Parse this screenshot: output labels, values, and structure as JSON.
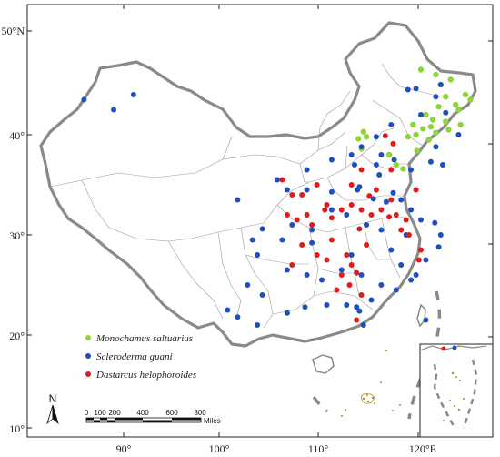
{
  "axes": {
    "lat_labels": [
      "50°N",
      "40°",
      "30°",
      "20°",
      "10°"
    ],
    "lon_labels": [
      "90°",
      "100°",
      "110°",
      "120°E"
    ]
  },
  "legend": {
    "items": [
      {
        "label": "Monochamus saltuarius",
        "color": "#8fd43a"
      },
      {
        "label": "Scleroderma guani",
        "color": "#1f4fbf"
      },
      {
        "label": "Dastarcus helophoroides",
        "color": "#e01b1b"
      }
    ]
  },
  "scale_bar": {
    "ticks": [
      "0",
      "100",
      "200",
      "400",
      "600",
      "800"
    ],
    "unit": "Miles"
  },
  "north_arrow": {
    "letter": "N"
  },
  "colors": {
    "border": "#8a8a8a",
    "province_lines": "#9a9a9a",
    "green_points": "#8fd43a",
    "blue_points": "#1f4fbf",
    "red_points": "#e01b1b"
  },
  "chart_data": {
    "type": "scatter",
    "title": "",
    "xlabel": "",
    "ylabel": "",
    "xlim": [
      81,
      128
    ],
    "ylim": [
      9,
      51
    ],
    "series": [
      {
        "name": "Monochamus saltuarius",
        "color": "#8fd43a",
        "points": [
          [
            120.0,
            46.5
          ],
          [
            121.5,
            46.0
          ],
          [
            122.0,
            45.0
          ],
          [
            123.0,
            45.5
          ],
          [
            122.5,
            43.8
          ],
          [
            123.5,
            43.0
          ],
          [
            124.5,
            44.0
          ],
          [
            125.0,
            43.5
          ],
          [
            123.8,
            42.5
          ],
          [
            121.8,
            42.8
          ],
          [
            120.5,
            42.0
          ],
          [
            121.2,
            41.5
          ],
          [
            122.5,
            41.3
          ],
          [
            121.0,
            40.8
          ],
          [
            120.2,
            40.6
          ],
          [
            121.5,
            40.2
          ],
          [
            122.8,
            40.5
          ],
          [
            124.0,
            41.0
          ],
          [
            119.5,
            40.0
          ],
          [
            120.8,
            39.5
          ],
          [
            118.7,
            39.8
          ],
          [
            119.2,
            41.0
          ],
          [
            114.2,
            40.3
          ],
          [
            114.5,
            39.8
          ],
          [
            113.7,
            39.6
          ],
          [
            114.0,
            38.6
          ],
          [
            116.8,
            38.0
          ],
          [
            117.5,
            37.0
          ],
          [
            118.2,
            36.6
          ],
          [
            119.6,
            38.4
          ]
        ]
      },
      {
        "name": "Scleroderma guani",
        "color": "#1f4fbf",
        "points": [
          [
            86.0,
            43.5
          ],
          [
            89.0,
            42.5
          ],
          [
            91.0,
            44.0
          ],
          [
            118.7,
            44.5
          ],
          [
            119.5,
            44.6
          ],
          [
            121.5,
            43.8
          ],
          [
            122.5,
            42.2
          ],
          [
            120.0,
            42.0
          ],
          [
            117.0,
            41.0
          ],
          [
            115.5,
            39.8
          ],
          [
            114.0,
            38.8
          ],
          [
            113.0,
            38.0
          ],
          [
            113.3,
            37.0
          ],
          [
            111.0,
            37.5
          ],
          [
            108.5,
            36.5
          ],
          [
            105.5,
            35.5
          ],
          [
            106.5,
            34.5
          ],
          [
            108.5,
            34.5
          ],
          [
            111.0,
            34.3
          ],
          [
            113.6,
            34.5
          ],
          [
            115.2,
            33.6
          ],
          [
            116.5,
            33.3
          ],
          [
            117.2,
            34.2
          ],
          [
            118.0,
            33.5
          ],
          [
            119.0,
            32.5
          ],
          [
            120.0,
            31.5
          ],
          [
            121.4,
            31.2
          ],
          [
            122.0,
            30.0
          ],
          [
            121.8,
            28.8
          ],
          [
            120.5,
            27.5
          ],
          [
            119.5,
            26.0
          ],
          [
            118.0,
            27.0
          ],
          [
            117.0,
            28.5
          ],
          [
            118.5,
            30.0
          ],
          [
            116.0,
            30.5
          ],
          [
            114.5,
            31.0
          ],
          [
            112.5,
            32.0
          ],
          [
            111.0,
            32.5
          ],
          [
            109.0,
            30.5
          ],
          [
            107.0,
            31.0
          ],
          [
            104.0,
            30.6
          ],
          [
            103.0,
            29.5
          ],
          [
            101.5,
            33.5
          ],
          [
            106.0,
            29.5
          ],
          [
            106.5,
            26.5
          ],
          [
            108.5,
            26.0
          ],
          [
            110.0,
            25.5
          ],
          [
            112.0,
            26.5
          ],
          [
            113.0,
            28.0
          ],
          [
            114.0,
            26.0
          ],
          [
            116.0,
            25.0
          ],
          [
            117.5,
            24.5
          ],
          [
            119.0,
            25.5
          ],
          [
            115.0,
            23.5
          ],
          [
            113.5,
            22.8
          ],
          [
            112.5,
            23.0
          ],
          [
            110.5,
            23.0
          ],
          [
            108.3,
            22.8
          ],
          [
            106.5,
            22.2
          ],
          [
            104.0,
            24.0
          ],
          [
            102.5,
            25.0
          ],
          [
            100.5,
            22.5
          ],
          [
            101.5,
            21.8
          ],
          [
            103.5,
            21.0
          ],
          [
            114.2,
            21.0
          ],
          [
            113.8,
            22.4
          ],
          [
            103.5,
            28.0
          ],
          [
            109.0,
            29.2
          ],
          [
            113.8,
            34.8
          ],
          [
            115.8,
            36.0
          ],
          [
            119.0,
            36.5
          ],
          [
            121.0,
            37.3
          ],
          [
            122.2,
            37.0
          ],
          [
            117.3,
            37.5
          ],
          [
            116.0,
            38.0
          ],
          [
            115.5,
            37.0
          ],
          [
            121.5,
            38.8
          ],
          [
            123.8,
            40.0
          ],
          [
            122.0,
            45.0
          ],
          [
            120.5,
            21.5
          ]
        ]
      },
      {
        "name": "Dastarcus helophoroides",
        "color": "#e01b1b",
        "points": [
          [
            116.4,
            39.9
          ],
          [
            117.2,
            39.1
          ],
          [
            114.0,
            36.5
          ],
          [
            113.0,
            35.0
          ],
          [
            106.0,
            35.5
          ],
          [
            107.0,
            34.0
          ],
          [
            108.0,
            34.0
          ],
          [
            109.5,
            35.0
          ],
          [
            110.5,
            33.0
          ],
          [
            106.5,
            32.0
          ],
          [
            107.5,
            31.5
          ],
          [
            108.5,
            32.0
          ],
          [
            109.0,
            31.0
          ],
          [
            110.3,
            32.5
          ],
          [
            111.0,
            31.7
          ],
          [
            112.0,
            32.5
          ],
          [
            113.0,
            33.0
          ],
          [
            114.0,
            32.5
          ],
          [
            115.0,
            32.0
          ],
          [
            116.0,
            32.5
          ],
          [
            117.0,
            33.5
          ],
          [
            115.5,
            34.5
          ],
          [
            114.8,
            33.9
          ],
          [
            118.5,
            31.5
          ],
          [
            118.0,
            30.5
          ],
          [
            120.0,
            28.5
          ],
          [
            108.0,
            29.0
          ],
          [
            109.5,
            28.0
          ],
          [
            112.5,
            28.0
          ],
          [
            113.0,
            27.0
          ],
          [
            112.0,
            26.0
          ],
          [
            113.5,
            26.2
          ],
          [
            112.8,
            25.0
          ],
          [
            111.5,
            24.5
          ],
          [
            114.0,
            24.0
          ],
          [
            113.5,
            21.5
          ],
          [
            110.5,
            27.5
          ],
          [
            107.0,
            27.0
          ],
          [
            111.0,
            29.5
          ],
          [
            114.5,
            29.0
          ],
          [
            113.8,
            30.6
          ],
          [
            116.8,
            31.8
          ],
          [
            117.5,
            32.0
          ],
          [
            117.0,
            36.5
          ],
          [
            119.5,
            34.5
          ],
          [
            118.8,
            30.0
          ],
          [
            119.8,
            27.5
          ]
        ]
      }
    ]
  }
}
